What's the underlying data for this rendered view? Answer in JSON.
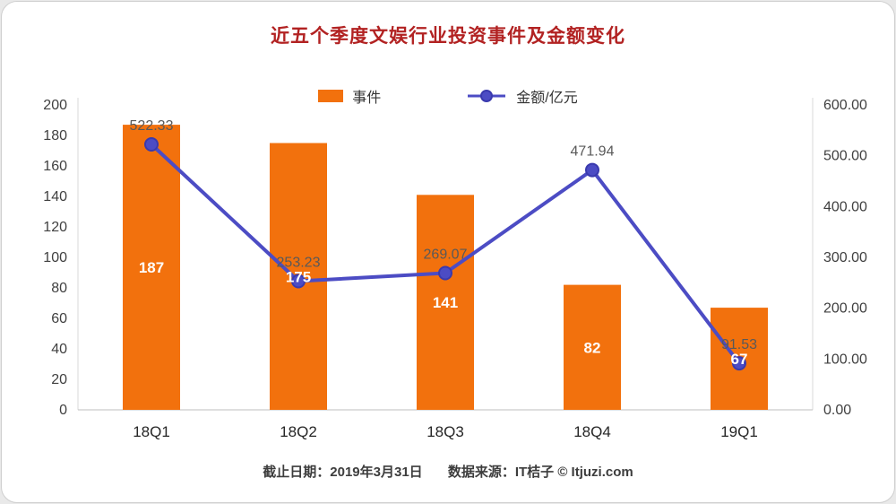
{
  "chart_data": {
    "type": "combo",
    "title": "近五个季度文娱行业投资事件及金额变化",
    "title_color": "#B22222",
    "categories": [
      "18Q1",
      "18Q2",
      "18Q3",
      "18Q4",
      "19Q1"
    ],
    "series": [
      {
        "name": "事件",
        "type": "bar",
        "values": [
          187,
          175,
          141,
          82,
          67
        ],
        "color": "#F2710D"
      },
      {
        "name": "金额/亿元",
        "type": "line",
        "values": [
          522.33,
          253.23,
          269.07,
          471.94,
          91.53
        ],
        "color": "#4C4CC4",
        "marker_stroke": "#3A3AAE"
      }
    ],
    "left_axis": {
      "min": 0,
      "max": 200,
      "step": 20,
      "ticks": [
        "0",
        "20",
        "40",
        "60",
        "80",
        "100",
        "120",
        "140",
        "160",
        "180",
        "200"
      ]
    },
    "right_axis": {
      "min": 0,
      "max": 600,
      "step": 100,
      "ticks": [
        "0.00",
        "100.00",
        "200.00",
        "300.00",
        "400.00",
        "500.00",
        "600.00"
      ]
    },
    "grid": false,
    "legend_position": "top"
  },
  "footer": {
    "date_label": "截止日期：2019年3月31日",
    "source_label": "数据来源：IT桔子 © Itjuzi.com"
  }
}
